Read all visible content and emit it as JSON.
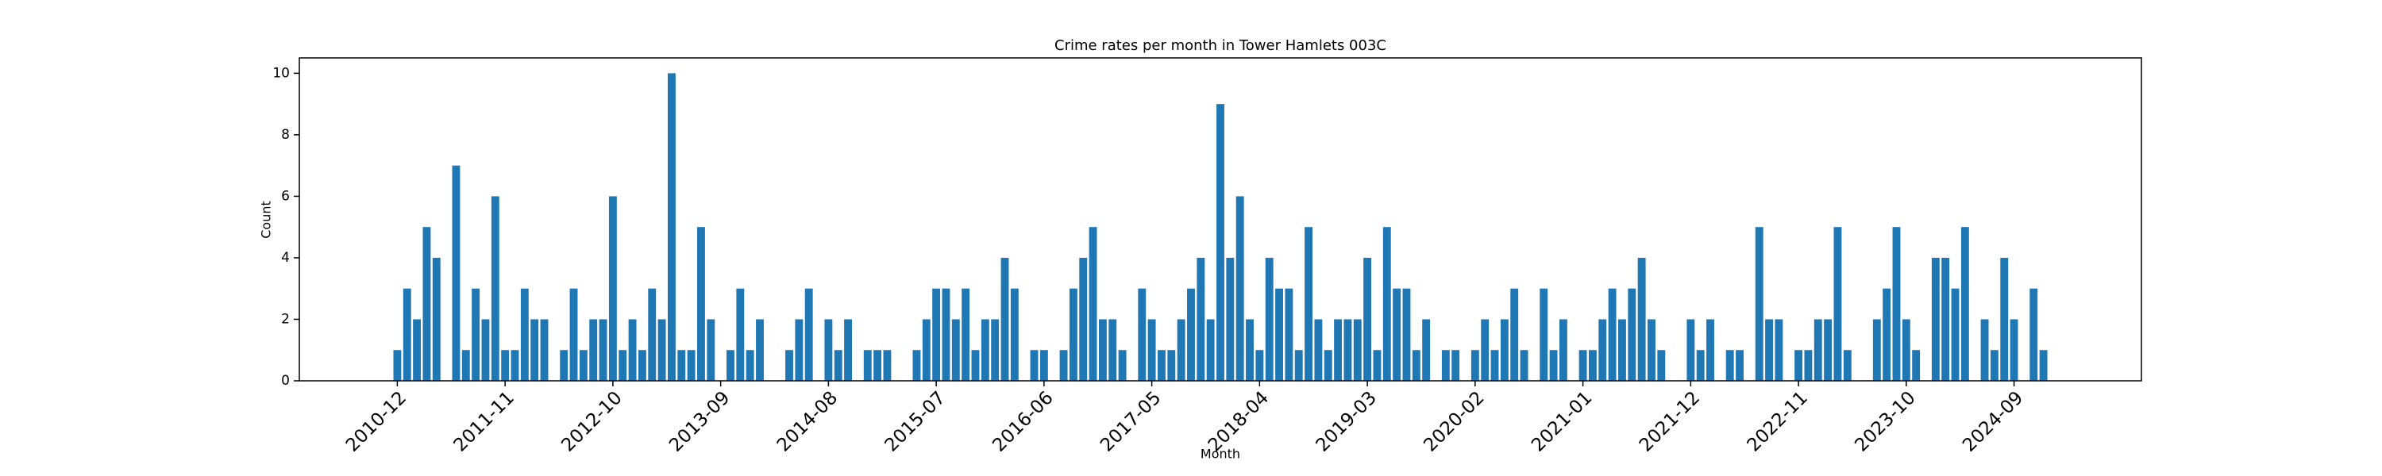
{
  "chart_data": {
    "type": "bar",
    "title": "Crime rates per month in Tower Hamlets 003C",
    "x_label": "Month",
    "y_label": "Count",
    "color": "#1f77b4",
    "x": [
      "2010-12",
      "2011-01",
      "2011-02",
      "2011-03",
      "2011-04",
      "2011-06",
      "2011-07",
      "2011-08",
      "2011-09",
      "2011-10",
      "2011-11",
      "2011-12",
      "2012-01",
      "2012-02",
      "2012-03",
      "2012-05",
      "2012-06",
      "2012-07",
      "2012-08",
      "2012-09",
      "2012-10",
      "2012-11",
      "2012-12",
      "2013-01",
      "2013-02",
      "2013-03",
      "2013-04",
      "2013-05",
      "2013-06",
      "2013-07",
      "2013-08",
      "2013-10",
      "2013-11",
      "2013-12",
      "2014-01",
      "2014-04",
      "2014-05",
      "2014-06",
      "2014-08",
      "2014-09",
      "2014-10",
      "2014-12",
      "2015-01",
      "2015-02",
      "2015-05",
      "2015-06",
      "2015-07",
      "2015-08",
      "2015-09",
      "2015-10",
      "2015-11",
      "2015-12",
      "2016-01",
      "2016-02",
      "2016-03",
      "2016-05",
      "2016-06",
      "2016-08",
      "2016-09",
      "2016-10",
      "2016-11",
      "2016-12",
      "2017-01",
      "2017-02",
      "2017-04",
      "2017-05",
      "2017-06",
      "2017-07",
      "2017-08",
      "2017-09",
      "2017-10",
      "2017-11",
      "2017-12",
      "2018-01",
      "2018-02",
      "2018-03",
      "2018-04",
      "2018-05",
      "2018-06",
      "2018-07",
      "2018-08",
      "2018-09",
      "2018-10",
      "2018-11",
      "2018-12",
      "2019-01",
      "2019-02",
      "2019-03",
      "2019-04",
      "2019-05",
      "2019-06",
      "2019-07",
      "2019-08",
      "2019-09",
      "2019-11",
      "2019-12",
      "2020-02",
      "2020-03",
      "2020-04",
      "2020-05",
      "2020-06",
      "2020-07",
      "2020-09",
      "2020-10",
      "2020-11",
      "2021-01",
      "2021-02",
      "2021-03",
      "2021-04",
      "2021-05",
      "2021-06",
      "2021-07",
      "2021-08",
      "2021-09",
      "2021-12",
      "2022-01",
      "2022-02",
      "2022-04",
      "2022-05",
      "2022-07",
      "2022-08",
      "2022-09",
      "2022-11",
      "2022-12",
      "2023-01",
      "2023-02",
      "2023-03",
      "2023-04",
      "2023-07",
      "2023-08",
      "2023-09",
      "2023-10",
      "2023-11",
      "2024-01",
      "2024-02",
      "2024-03",
      "2024-04",
      "2024-06",
      "2024-07",
      "2024-08",
      "2024-09",
      "2024-11",
      "2024-12"
    ],
    "values": [
      1,
      3,
      2,
      5,
      4,
      7,
      1,
      3,
      2,
      6,
      1,
      1,
      3,
      2,
      2,
      1,
      3,
      1,
      2,
      2,
      6,
      1,
      2,
      1,
      3,
      2,
      10,
      1,
      1,
      5,
      2,
      1,
      3,
      1,
      2,
      1,
      2,
      3,
      2,
      1,
      2,
      1,
      1,
      1,
      1,
      2,
      3,
      3,
      2,
      3,
      1,
      2,
      2,
      4,
      3,
      1,
      1,
      1,
      3,
      4,
      5,
      2,
      2,
      1,
      3,
      2,
      1,
      1,
      2,
      3,
      4,
      2,
      9,
      4,
      6,
      2,
      1,
      4,
      3,
      3,
      1,
      5,
      2,
      1,
      2,
      2,
      2,
      4,
      1,
      5,
      3,
      3,
      1,
      2,
      1,
      1,
      1,
      2,
      1,
      2,
      3,
      1,
      3,
      1,
      2,
      1,
      1,
      2,
      3,
      2,
      3,
      4,
      2,
      1,
      2,
      1,
      2,
      1,
      1,
      5,
      2,
      2,
      1,
      1,
      2,
      2,
      5,
      1,
      2,
      3,
      5,
      2,
      1,
      4,
      4,
      3,
      5,
      2,
      1,
      4,
      2,
      3,
      1
    ],
    "xlim": [
      "2010-02",
      "2025-10"
    ],
    "xticks": [
      "2010-12",
      "2011-11",
      "2012-10",
      "2013-09",
      "2014-08",
      "2015-07",
      "2016-06",
      "2017-05",
      "2018-04",
      "2019-03",
      "2020-02",
      "2021-01",
      "2021-12",
      "2022-11",
      "2023-10",
      "2024-09"
    ],
    "ylim": [
      0,
      10.5
    ],
    "yticks": [
      0,
      2,
      4,
      6,
      8,
      10
    ]
  }
}
